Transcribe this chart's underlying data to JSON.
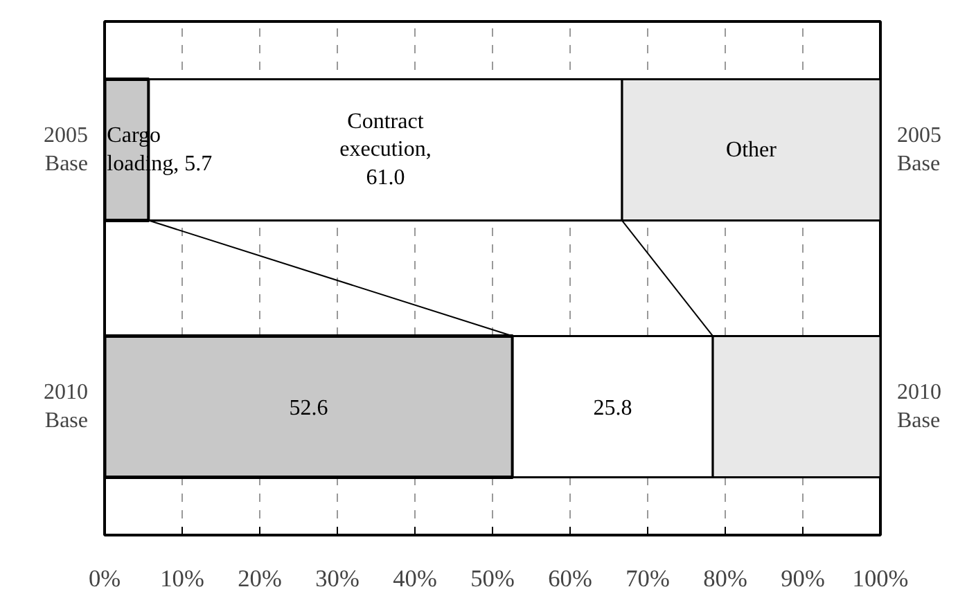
{
  "chart_data": {
    "type": "bar",
    "orientation": "horizontal",
    "stacked": true,
    "categories": [
      "2005\nBase",
      "2010\nBase"
    ],
    "y2_categories": [
      "2005\nBase",
      "2010\nBase"
    ],
    "series": [
      {
        "color": "#c8c8c8",
        "values": [
          5.7,
          52.6
        ],
        "value_labels": [
          "Cargo\nloading, 5.7",
          "52.6"
        ]
      },
      {
        "color": "#ffffff",
        "values": [
          61.0,
          25.8
        ],
        "value_labels": [
          "Contract\nexecution,\n61.0",
          "25.8"
        ]
      },
      {
        "color": "#e8e8e8",
        "values": [
          33.3,
          21.6
        ],
        "value_labels": [
          "Other",
          null
        ]
      }
    ],
    "xlim": [
      0,
      100
    ],
    "xticks": [
      {
        "value": 0,
        "label": "0%"
      },
      {
        "value": 10,
        "label": "10%"
      },
      {
        "value": 20,
        "label": "20%"
      },
      {
        "value": 30,
        "label": "30%"
      },
      {
        "value": 40,
        "label": "40%"
      },
      {
        "value": 50,
        "label": "50%"
      },
      {
        "value": 60,
        "label": "60%"
      },
      {
        "value": 70,
        "label": "70%"
      },
      {
        "value": 80,
        "label": "80%"
      },
      {
        "value": 90,
        "label": "90%"
      },
      {
        "value": 100,
        "label": "100%"
      }
    ],
    "grid": "x"
  }
}
